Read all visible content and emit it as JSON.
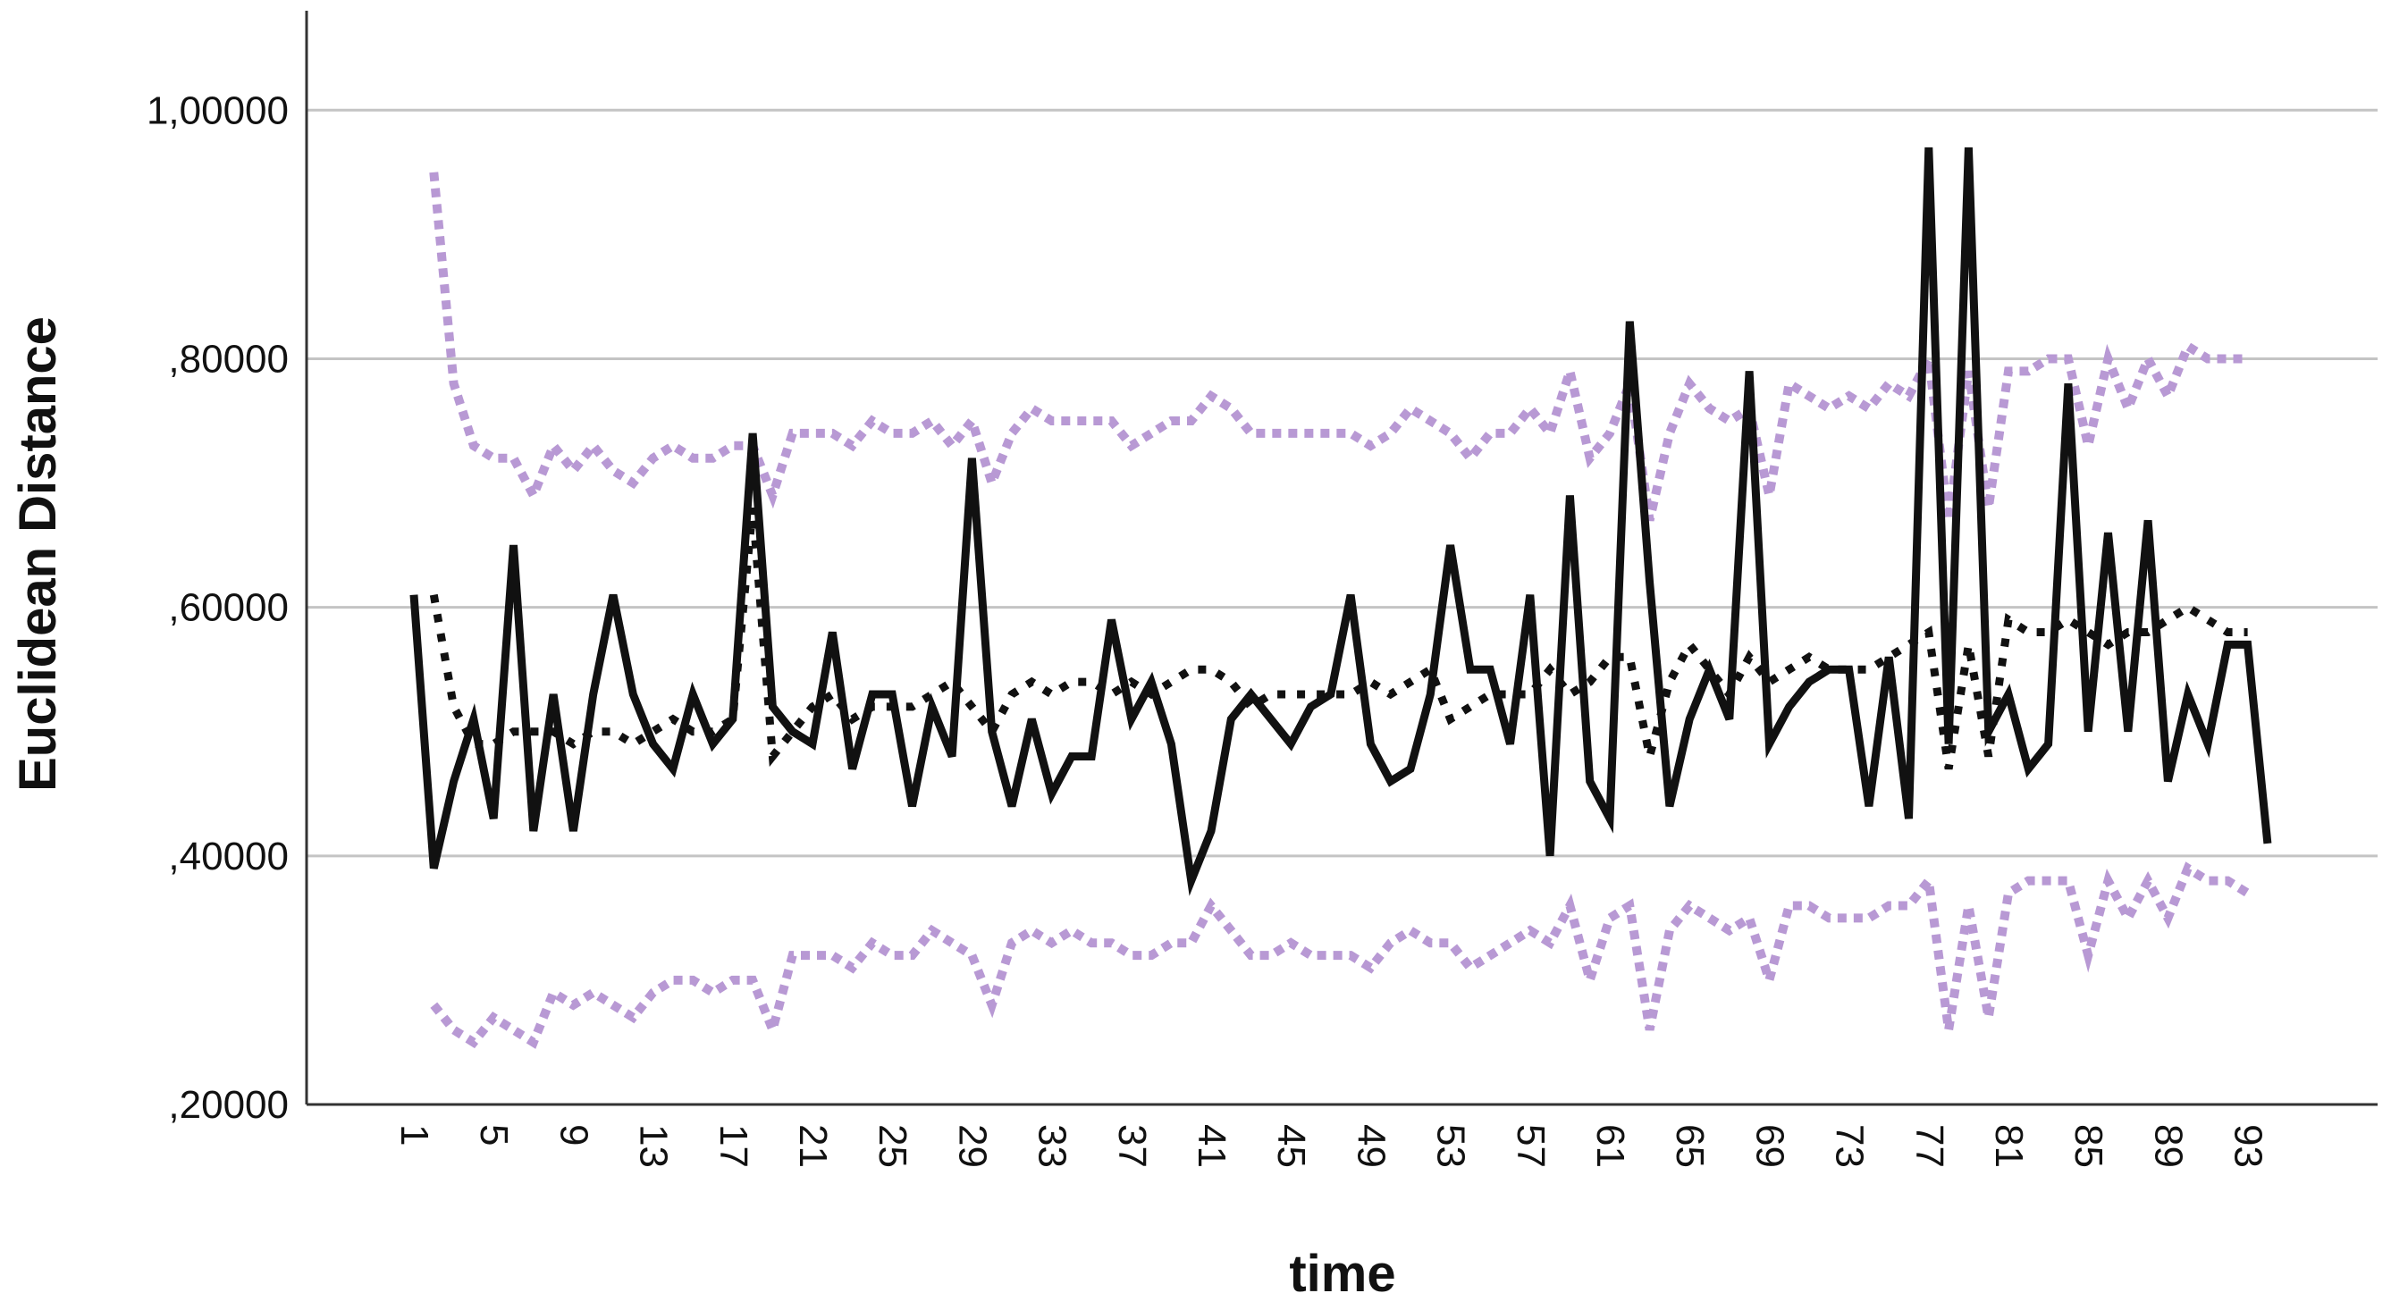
{
  "chart_data": {
    "type": "line",
    "xlabel": "time",
    "ylabel": "Euclidean Distance",
    "ylim": [
      0.2,
      1.08
    ],
    "y_ticks": [
      {
        "value": 0.2,
        "label": ",20000"
      },
      {
        "value": 0.4,
        "label": ",40000"
      },
      {
        "value": 0.6,
        "label": ",60000"
      },
      {
        "value": 0.8,
        "label": ",80000"
      },
      {
        "value": 1.0,
        "label": "1,00000"
      }
    ],
    "x_tick_labels": [
      "1",
      "5",
      "9",
      "13",
      "17",
      "21",
      "25",
      "29",
      "33",
      "37",
      "41",
      "45",
      "49",
      "53",
      "57",
      "61",
      "65",
      "69",
      "73",
      "77",
      "81",
      "85",
      "89",
      "93"
    ],
    "grid": "horizontal",
    "legend": "none",
    "colors": {
      "observed": "#111111",
      "fit": "#111111",
      "bounds": "#b899d4",
      "grid": "#c4c4c4",
      "axis": "#333333"
    },
    "x": [
      1,
      2,
      3,
      4,
      5,
      6,
      7,
      8,
      9,
      10,
      11,
      12,
      13,
      14,
      15,
      16,
      17,
      18,
      19,
      20,
      21,
      22,
      23,
      24,
      25,
      26,
      27,
      28,
      29,
      30,
      31,
      32,
      33,
      34,
      35,
      36,
      37,
      38,
      39,
      40,
      41,
      42,
      43,
      44,
      45,
      46,
      47,
      48,
      49,
      50,
      51,
      52,
      53,
      54,
      55,
      56,
      57,
      58,
      59,
      60,
      61,
      62,
      63,
      64,
      65,
      66,
      67,
      68,
      69,
      70,
      71,
      72,
      73,
      74,
      75,
      76,
      77,
      78,
      79,
      80,
      81,
      82,
      83,
      84,
      85,
      86,
      87,
      88,
      89,
      90,
      91,
      92,
      93,
      94
    ],
    "series": [
      {
        "style": "solid",
        "values": [
          0.61,
          0.39,
          0.46,
          0.51,
          0.43,
          0.65,
          0.42,
          0.53,
          0.42,
          0.53,
          0.61,
          0.53,
          0.49,
          0.47,
          0.53,
          0.49,
          0.51,
          0.74,
          0.52,
          0.5,
          0.49,
          0.58,
          0.47,
          0.53,
          0.53,
          0.44,
          0.52,
          0.48,
          0.72,
          0.5,
          0.44,
          0.51,
          0.45,
          0.48,
          0.48,
          0.59,
          0.51,
          0.54,
          0.49,
          0.38,
          0.42,
          0.51,
          0.53,
          0.51,
          0.49,
          0.52,
          0.53,
          0.61,
          0.49,
          0.46,
          0.47,
          0.53,
          0.65,
          0.55,
          0.55,
          0.49,
          0.61,
          0.4,
          0.69,
          0.46,
          0.43,
          0.83,
          0.62,
          0.44,
          0.51,
          0.55,
          0.51,
          0.79,
          0.49,
          0.52,
          0.54,
          0.55,
          0.55,
          0.44,
          0.56,
          0.43,
          0.97,
          0.49,
          0.97,
          0.5,
          0.53,
          0.47,
          0.49,
          0.78,
          0.5,
          0.66,
          0.5,
          0.67,
          0.46,
          0.53,
          0.49,
          0.57,
          0.57,
          0.41
        ]
      },
      {
        "style": "dotted",
        "values": [
          null,
          0.61,
          0.52,
          0.49,
          0.49,
          0.5,
          0.5,
          0.5,
          0.49,
          0.5,
          0.5,
          0.49,
          0.5,
          0.51,
          0.5,
          0.5,
          0.51,
          0.68,
          0.48,
          0.5,
          0.52,
          0.53,
          0.51,
          0.52,
          0.52,
          0.52,
          0.53,
          0.54,
          0.52,
          0.5,
          0.53,
          0.54,
          0.53,
          0.54,
          0.54,
          0.53,
          0.54,
          0.53,
          0.54,
          0.55,
          0.55,
          0.54,
          0.52,
          0.53,
          0.53,
          0.53,
          0.53,
          0.53,
          0.54,
          0.53,
          0.54,
          0.55,
          0.51,
          0.52,
          0.53,
          0.53,
          0.53,
          0.55,
          0.53,
          0.54,
          0.56,
          0.56,
          0.48,
          0.54,
          0.57,
          0.55,
          0.53,
          0.56,
          0.54,
          0.55,
          0.56,
          0.55,
          0.55,
          0.55,
          0.56,
          0.57,
          0.58,
          0.47,
          0.57,
          0.48,
          0.59,
          0.58,
          0.58,
          0.59,
          0.58,
          0.57,
          0.58,
          0.58,
          0.59,
          0.6,
          0.59,
          0.58,
          0.58,
          null
        ]
      },
      {
        "style": "dotted",
        "values": [
          null,
          0.95,
          0.78,
          0.73,
          0.72,
          0.72,
          0.69,
          0.73,
          0.71,
          0.73,
          0.71,
          0.7,
          0.72,
          0.73,
          0.72,
          0.72,
          0.73,
          0.73,
          0.69,
          0.74,
          0.74,
          0.74,
          0.73,
          0.75,
          0.74,
          0.74,
          0.75,
          0.73,
          0.75,
          0.7,
          0.74,
          0.76,
          0.75,
          0.75,
          0.75,
          0.75,
          0.73,
          0.74,
          0.75,
          0.75,
          0.77,
          0.76,
          0.74,
          0.74,
          0.74,
          0.74,
          0.74,
          0.74,
          0.73,
          0.74,
          0.76,
          0.75,
          0.74,
          0.72,
          0.74,
          0.74,
          0.76,
          0.74,
          0.79,
          0.72,
          0.74,
          0.78,
          0.67,
          0.74,
          0.78,
          0.76,
          0.75,
          0.76,
          0.69,
          0.78,
          0.77,
          0.76,
          0.77,
          0.76,
          0.78,
          0.77,
          0.8,
          0.67,
          0.79,
          0.68,
          0.79,
          0.79,
          0.8,
          0.8,
          0.73,
          0.8,
          0.76,
          0.8,
          0.77,
          0.81,
          0.8,
          0.8,
          0.8,
          null
        ]
      },
      {
        "style": "dotted",
        "values": [
          null,
          0.28,
          0.26,
          0.25,
          0.27,
          0.26,
          0.25,
          0.29,
          0.28,
          0.29,
          0.28,
          0.27,
          0.29,
          0.3,
          0.3,
          0.29,
          0.3,
          0.3,
          0.26,
          0.32,
          0.32,
          0.32,
          0.31,
          0.33,
          0.32,
          0.32,
          0.34,
          0.33,
          0.32,
          0.28,
          0.33,
          0.34,
          0.33,
          0.34,
          0.33,
          0.33,
          0.32,
          0.32,
          0.33,
          0.33,
          0.36,
          0.34,
          0.32,
          0.32,
          0.33,
          0.32,
          0.32,
          0.32,
          0.31,
          0.33,
          0.34,
          0.33,
          0.33,
          0.31,
          0.32,
          0.33,
          0.34,
          0.33,
          0.36,
          0.3,
          0.35,
          0.36,
          0.26,
          0.34,
          0.36,
          0.35,
          0.34,
          0.35,
          0.3,
          0.36,
          0.36,
          0.35,
          0.35,
          0.35,
          0.36,
          0.36,
          0.38,
          0.26,
          0.36,
          0.27,
          0.37,
          0.38,
          0.38,
          0.38,
          0.32,
          0.38,
          0.35,
          0.38,
          0.35,
          0.39,
          0.38,
          0.38,
          0.37,
          null
        ]
      }
    ]
  }
}
